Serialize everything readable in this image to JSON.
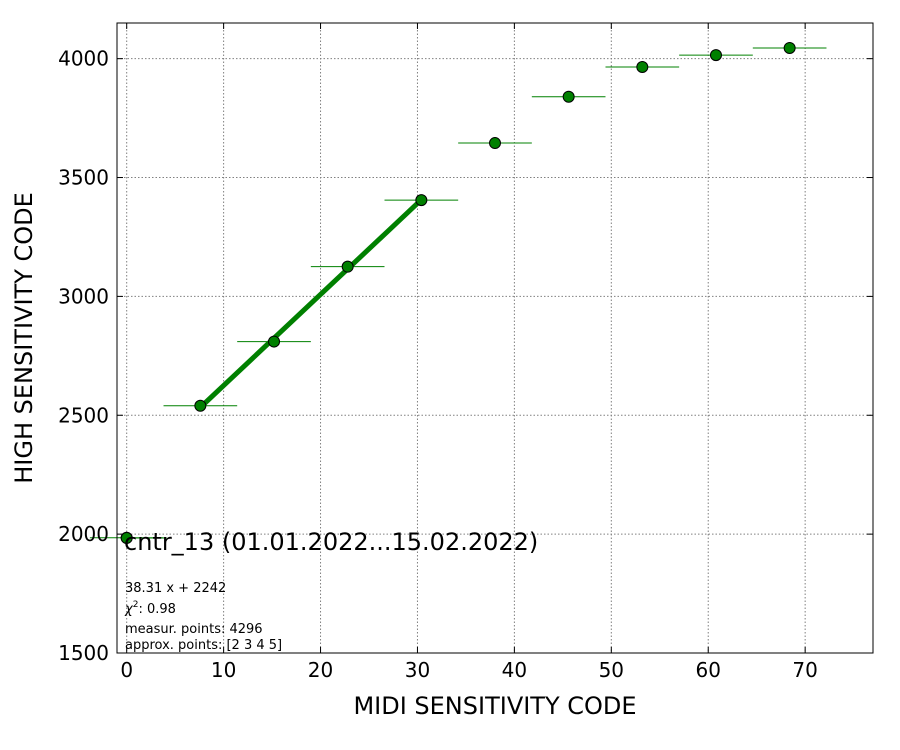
{
  "chart_data": {
    "type": "scatter",
    "xlabel": "MIDI SENSITIVITY CODE",
    "ylabel": "HIGH SENSITIVITY CODE",
    "xlim": [
      -1,
      77
    ],
    "ylim": [
      1500,
      4150
    ],
    "xticks": [
      0,
      10,
      20,
      30,
      40,
      50,
      60,
      70
    ],
    "yticks": [
      1500,
      2000,
      2500,
      3000,
      3500,
      4000
    ],
    "grid": true,
    "legend_location": "lower-left",
    "colors": {
      "marker_fill": "#008000",
      "marker_edge": "#000000",
      "fit_line": "#008000",
      "error_bar": "#008000",
      "grid": "#808080"
    },
    "series": [
      {
        "name": "cntr_13 (01.01.2022...15.02.2022)",
        "x": [
          0,
          7.6,
          15.2,
          22.8,
          30.4,
          38.0,
          45.6,
          53.2,
          60.8,
          68.4
        ],
        "y": [
          1985,
          2540,
          2810,
          3125,
          3405,
          3645,
          3840,
          3965,
          4015,
          4045
        ],
        "x_err": [
          3.8,
          3.8,
          3.8,
          3.8,
          3.8,
          3.8,
          3.8,
          3.8,
          3.8,
          3.8
        ]
      }
    ],
    "fit": {
      "type": "line",
      "x_range": [
        7.6,
        30.4
      ],
      "slope": 38.31,
      "intercept": 2242,
      "approx_points": [
        2,
        3,
        4,
        5
      ]
    },
    "annotations": {
      "equation": "38.31 x + 2242",
      "chi2_label": "χ",
      "chi2_sup": "2",
      "chi2_value": ": 0.98",
      "measur_points": "measur. points: 4296",
      "approx_points": "approx. points: [2 3 4 5]"
    }
  }
}
